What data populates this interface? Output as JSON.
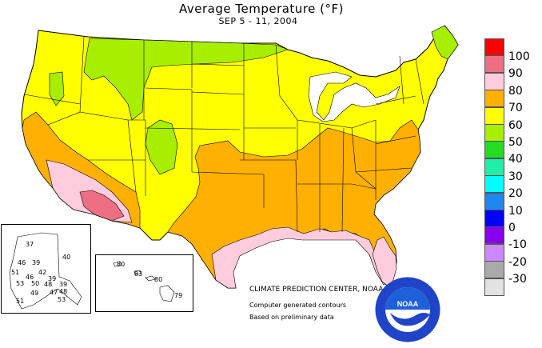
{
  "title": "Average Temperature (°F)",
  "subtitle": "SEP 5 - 11, 2004",
  "legend": [
    {
      "label": "100",
      "color": "#ff0000"
    },
    {
      "label": "90",
      "color": "#ee6f84"
    },
    {
      "label": "80",
      "color": "#ffccdd"
    },
    {
      "label": "70",
      "color": "#ffb000"
    },
    {
      "label": "60",
      "color": "#ffff00"
    },
    {
      "label": "50",
      "color": "#a8ee00"
    },
    {
      "label": "40",
      "color": "#22dd22"
    },
    {
      "label": "30",
      "color": "#22eeaa"
    },
    {
      "label": "20",
      "color": "#00ffff"
    },
    {
      "label": "10",
      "color": "#1e88ee"
    },
    {
      "label": "0",
      "color": "#0000ff"
    },
    {
      "label": "-10",
      "color": "#8800ee"
    },
    {
      "label": "-20",
      "color": "#cc88ff"
    },
    {
      "label": "-30",
      "color": "#aaaaaa"
    },
    {
      "label": "",
      "color": "#e2e2e2"
    }
  ],
  "credits": {
    "center": "CLIMATE PREDICTION CENTER, NOAA",
    "line2": "Computer generated contours",
    "line3": "Based on preliminary data"
  },
  "logo_text": "NOAA",
  "alaska_values": [
    "37",
    "40",
    "46",
    "39",
    "51",
    "42",
    "46",
    "39",
    "53",
    "50",
    "48",
    "39",
    "49",
    "47",
    "48",
    "51",
    "53"
  ],
  "hawaii_values": [
    "80",
    "83",
    "80",
    "79"
  ]
}
